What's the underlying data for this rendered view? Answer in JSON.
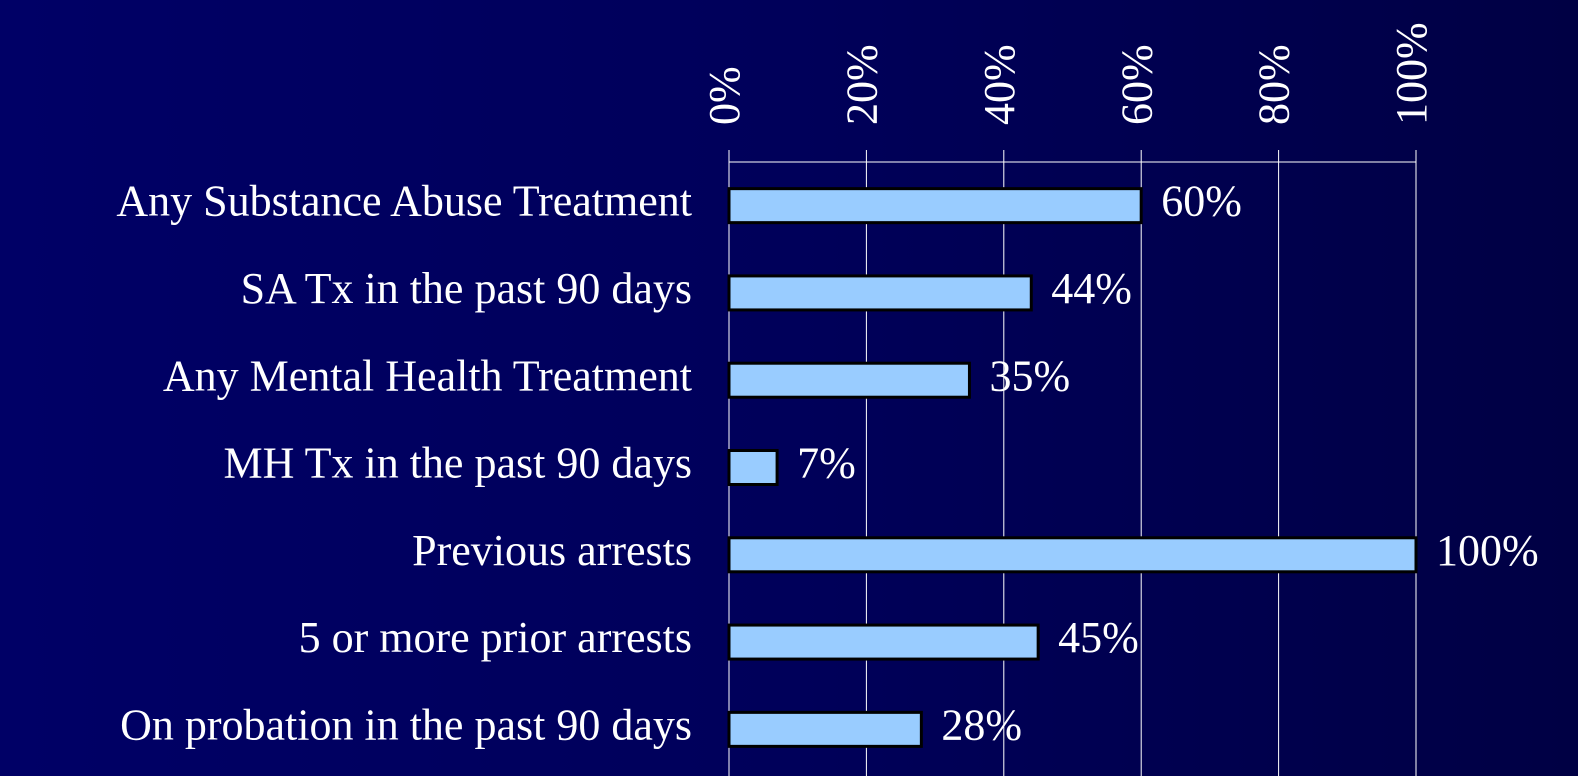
{
  "chart_data": {
    "type": "bar",
    "orientation": "horizontal",
    "categories": [
      "Any Substance Abuse Treatment",
      "SA Tx in the past 90 days",
      "Any Mental Health Treatment",
      "MH Tx in the past 90 days",
      "Previous arrests",
      "5 or more prior arrests",
      "On probation in the past 90 days"
    ],
    "values": [
      60,
      44,
      35,
      7,
      100,
      45,
      28
    ],
    "value_labels": [
      "60%",
      "44%",
      "35%",
      "7%",
      "100%",
      "45%",
      "28%"
    ],
    "color": "#99ccff",
    "xlim": [
      0,
      100
    ],
    "xticks": [
      {
        "value": 0,
        "label": "0%"
      },
      {
        "value": 20,
        "label": "20%"
      },
      {
        "value": 40,
        "label": "40%"
      },
      {
        "value": 60,
        "label": "60%"
      },
      {
        "value": 80,
        "label": "80%"
      },
      {
        "value": 100,
        "label": "100%"
      }
    ],
    "grid": true
  }
}
